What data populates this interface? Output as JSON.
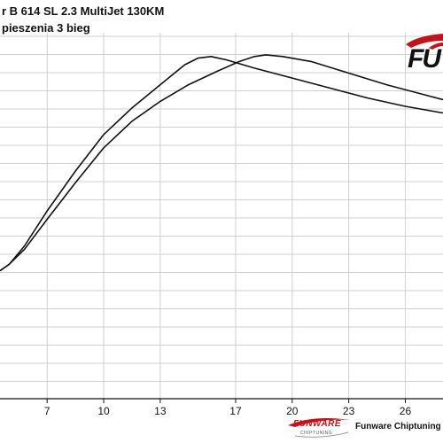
{
  "chart_data": {
    "type": "line",
    "title": "r B 614 SL 2.3 MultiJet 130KM",
    "subtitle": "pieszenia 3 bieg",
    "xlabel": "",
    "ylabel": "",
    "x_ticks": [
      7,
      10,
      13,
      17,
      20,
      23,
      26
    ],
    "x_tick_labels": [
      "7",
      "10",
      "13",
      "17",
      "20",
      "23",
      "26"
    ],
    "xlim": [
      4.5,
      28.0
    ],
    "ylim": [
      0,
      100
    ],
    "grid": true,
    "legend": "none",
    "series": [
      {
        "x": [
          4.5,
          5.0,
          5.8,
          7.0,
          8.5,
          10.0,
          11.5,
          13.0,
          14.3,
          15.0,
          15.7,
          16.5,
          18.0,
          20.0,
          22.0,
          24.0,
          26.0,
          28.0
        ],
        "y": [
          38.5,
          40.5,
          46.0,
          56.5,
          68.5,
          79.5,
          87.5,
          94.5,
          100.5,
          102.5,
          103.0,
          102.0,
          99.5,
          96.5,
          93.5,
          90.5,
          88.0,
          86.0
        ]
      },
      {
        "x": [
          4.5,
          5.0,
          5.8,
          7.0,
          8.5,
          10.0,
          11.5,
          13.0,
          14.5,
          16.0,
          17.2,
          18.0,
          18.6,
          19.5,
          21.0,
          23.0,
          25.0,
          27.0,
          28.0
        ],
        "y": [
          38.5,
          40.5,
          45.0,
          54.0,
          65.0,
          75.5,
          83.5,
          89.5,
          94.5,
          98.5,
          101.5,
          103.0,
          103.5,
          103.0,
          101.5,
          98.0,
          94.5,
          91.5,
          90.0
        ]
      }
    ]
  },
  "header": {
    "title": "r B 614 SL 2.3 MultiJet 130KM",
    "subtitle": "pieszenia 3 bieg"
  },
  "logo": {
    "text": "FU"
  },
  "footer": {
    "brand": "FUNWARE",
    "brand_sub": "CHIPTUNING",
    "text": "Funware Chiptuning Łódź",
    "accent_color": "#c0141b"
  },
  "colors": {
    "line": "#111111",
    "grid": "#cfcfcf",
    "axis": "#111111",
    "accent": "#c0141b"
  }
}
